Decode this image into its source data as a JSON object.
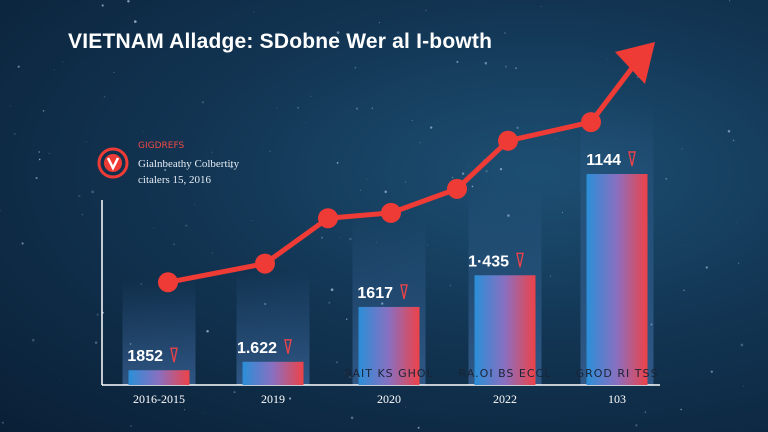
{
  "header": {
    "title": "VIETNAM Alladge: SDobne Wer al I-bowth"
  },
  "badge": {
    "brand": "GIGDREFS",
    "subtitle": "Gialnbeathy Colbertity",
    "date": "citalers 15, 2016"
  },
  "colors": {
    "accent_red": "#ef3b36",
    "bar_blue": "#2a8fd8",
    "bar_red": "#e8434a",
    "text_light": "#ffffff"
  },
  "chart_data": {
    "type": "bar",
    "title": "VIETNAM Alladge: SDobne Wer al I-bowth",
    "categories": [
      "2016-2015",
      "2019",
      "2020",
      "2022",
      "103"
    ],
    "values": [
      1852,
      1622,
      1617,
      1435,
      1144
    ],
    "value_labels": [
      "1852",
      "1.622",
      "1617",
      "1·435",
      "1144"
    ],
    "bar_heights_relative": [
      0.07,
      0.11,
      0.37,
      0.52,
      1.0
    ],
    "bar_text": [
      "",
      "",
      "RAIT  KS  GHOL",
      "RA.OI  BS  ECCL",
      "GROD  RI  TSS"
    ],
    "trend_line": {
      "points": [
        0.1,
        0.17,
        0.34,
        0.36,
        0.45,
        0.63,
        0.7,
        1.0
      ],
      "direction": "up"
    },
    "grid": false,
    "legend": "none"
  }
}
